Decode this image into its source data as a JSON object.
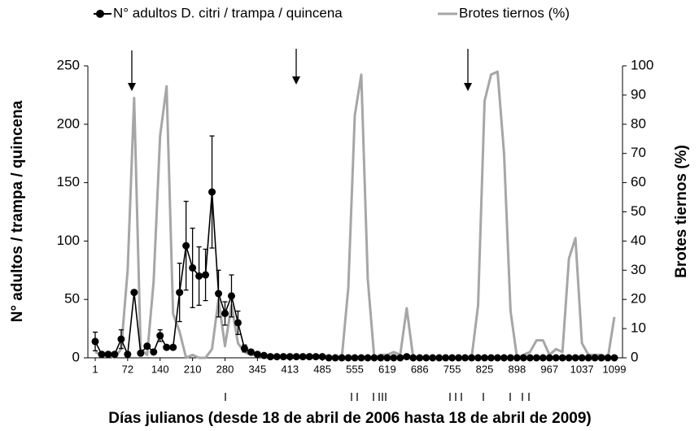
{
  "chart_data": {
    "type": "line",
    "x_label": "Días julianos (desde 18 de abril de 2006 hasta 18 de abril de 2009)",
    "y_label": "N° adultos / trampa / quincena",
    "y2_label": "Brotes tiernos (%)",
    "categories": [
      1,
      null,
      null,
      null,
      null,
      72,
      null,
      null,
      null,
      null,
      140,
      null,
      null,
      null,
      null,
      210,
      null,
      null,
      null,
      null,
      280,
      null,
      null,
      null,
      null,
      345,
      null,
      null,
      null,
      null,
      413,
      null,
      null,
      null,
      null,
      485,
      null,
      null,
      null,
      null,
      555,
      null,
      null,
      null,
      null,
      619,
      null,
      null,
      null,
      null,
      686,
      null,
      null,
      null,
      null,
      755,
      null,
      null,
      null,
      null,
      825,
      null,
      null,
      null,
      null,
      898,
      null,
      null,
      null,
      null,
      967,
      null,
      null,
      null,
      null,
      1037,
      null,
      null,
      null,
      null,
      1099
    ],
    "ylim": [
      0,
      250
    ],
    "yticks": [
      0,
      50,
      100,
      150,
      200,
      250
    ],
    "y2lim": [
      0,
      100
    ],
    "y2ticks": [
      0,
      10,
      20,
      30,
      40,
      50,
      60,
      70,
      80,
      90,
      100
    ],
    "series": [
      {
        "name": "N° adultos D. citri / trampa / quincena",
        "color": "#000000",
        "marker": "circle",
        "values": [
          14,
          3,
          3,
          3,
          16,
          3,
          56,
          4,
          10,
          5,
          19,
          9,
          9,
          56,
          96,
          77,
          70,
          71,
          142,
          55,
          38,
          53,
          30,
          8,
          5,
          3,
          2,
          1,
          1,
          1,
          1,
          1,
          1,
          1,
          1,
          1,
          0,
          0,
          0,
          0,
          0,
          0,
          0,
          0,
          0,
          0,
          0,
          0,
          1,
          0,
          0,
          0,
          0,
          0,
          0,
          0,
          0,
          0,
          0,
          0,
          0,
          0,
          0,
          0,
          0,
          0,
          0,
          0,
          0,
          0,
          0,
          0,
          0,
          0,
          0,
          0,
          0,
          0,
          0,
          0,
          0
        ],
        "errors": [
          8,
          1,
          1,
          1,
          8,
          1,
          0,
          1,
          2,
          1,
          5,
          1,
          1,
          25,
          38,
          34,
          25,
          22,
          48,
          20,
          10,
          18,
          10,
          3,
          1,
          1,
          1,
          0,
          0,
          0,
          0,
          0,
          0,
          0,
          0,
          0,
          0,
          0,
          0,
          0,
          0,
          0,
          0,
          0,
          0,
          0,
          0,
          0,
          0,
          0,
          0,
          0,
          0,
          0,
          0,
          0,
          0,
          0,
          0,
          0,
          0,
          0,
          0,
          0,
          0,
          0,
          0,
          0,
          0,
          0,
          0,
          0,
          0,
          0,
          0,
          0,
          0,
          0,
          0,
          0,
          0
        ]
      },
      {
        "name": "Brotes tiernos (%)",
        "color": "#a6a6a6",
        "axis": "y2",
        "values": [
          2,
          1,
          1,
          0,
          3,
          30,
          89,
          3,
          1,
          26,
          76,
          93,
          15,
          9,
          0,
          1,
          0,
          0,
          3,
          20,
          4,
          18,
          5,
          2,
          1,
          1,
          0,
          0,
          0,
          0,
          0,
          0,
          0,
          0,
          0,
          0,
          0,
          0,
          0,
          24,
          83,
          97,
          27,
          0,
          1,
          1,
          2,
          1,
          17,
          0,
          0,
          0,
          0,
          0,
          0,
          0,
          0,
          0,
          0,
          18,
          88,
          97,
          98,
          70,
          16,
          0,
          1,
          2,
          6,
          6,
          1,
          3,
          2,
          34,
          41,
          5,
          1,
          1,
          1,
          0,
          14
        ]
      }
    ]
  }
}
